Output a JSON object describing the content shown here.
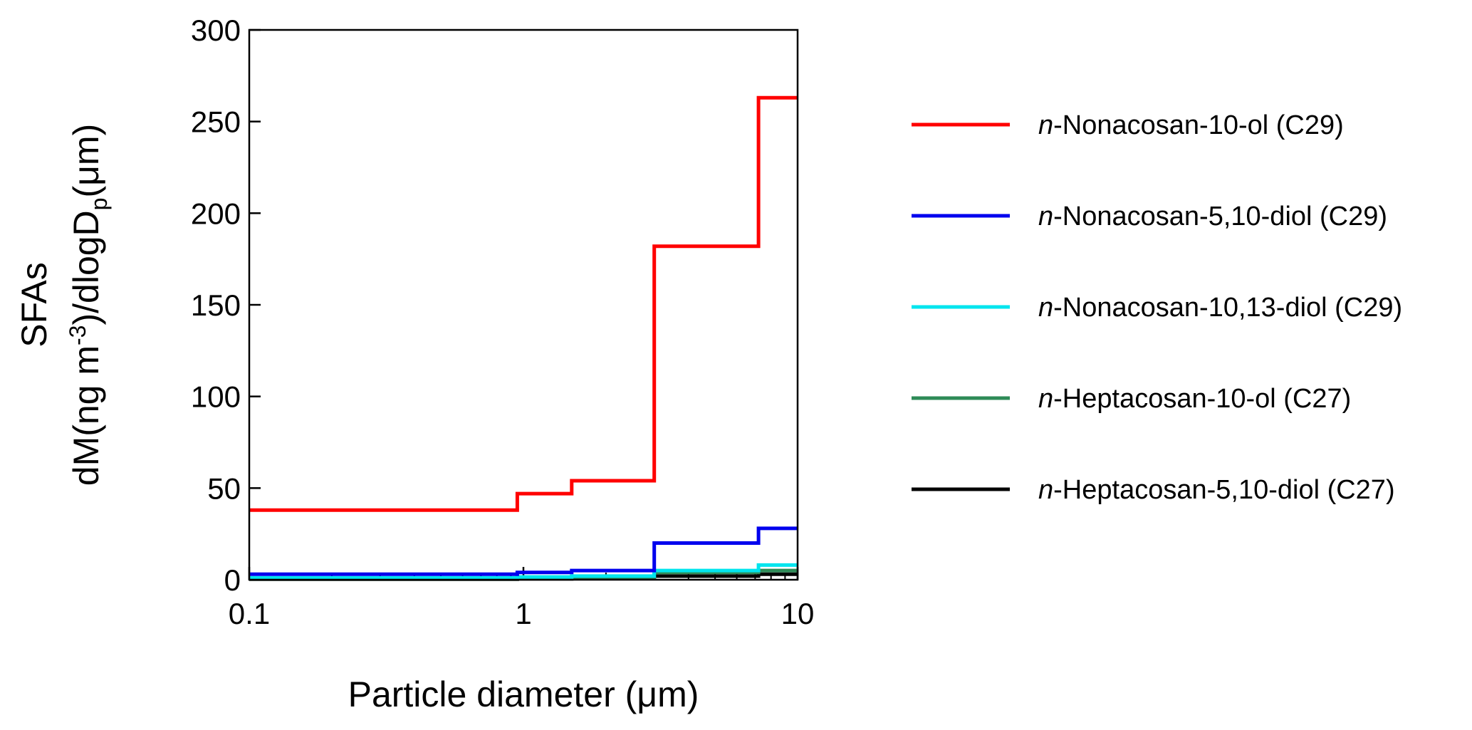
{
  "chart_data": {
    "type": "line",
    "step": true,
    "xscale": "log",
    "xlim": [
      0.1,
      10
    ],
    "ylim": [
      0,
      300
    ],
    "x_ticks": [
      0.1,
      1,
      10
    ],
    "x_tick_labels": [
      "0.1",
      "1",
      "10"
    ],
    "y_ticks": [
      0,
      50,
      100,
      150,
      200,
      250,
      300
    ],
    "y_tick_labels": [
      "0",
      "50",
      "100",
      "150",
      "200",
      "250",
      "300"
    ],
    "xlabel": "Particle diameter (μm)",
    "ylabel_line1": "SFAs",
    "ylabel_line2": "dM(ng m",
    "ylabel_sup": "-3",
    "ylabel_mid": ")/dlogD",
    "ylabel_sub": "p",
    "ylabel_end": "(μm)",
    "grid": false,
    "legend_position": "right",
    "bin_edges": [
      0.1,
      0.95,
      1.5,
      3.0,
      7.2,
      10
    ],
    "series": [
      {
        "name_italic": "n",
        "name_rest": "-Nonacosan-10-ol (C29)",
        "color": "#ff0000",
        "values": [
          38,
          47,
          54,
          182,
          263
        ]
      },
      {
        "name_italic": "n",
        "name_rest": "-Nonacosan-5,10-diol (C29)",
        "color": "#0000ee",
        "values": [
          3,
          4,
          5,
          20,
          28
        ]
      },
      {
        "name_italic": "n",
        "name_rest": "-Nonacosan-10,13-diol (C29)",
        "color": "#00e5ee",
        "values": [
          1,
          1.5,
          2,
          5,
          8
        ]
      },
      {
        "name_italic": "n",
        "name_rest": "-Heptacosan-10-ol (C27)",
        "color": "#2e8b57",
        "values": [
          0.5,
          1,
          1.5,
          4,
          5
        ]
      },
      {
        "name_italic": "n",
        "name_rest": "-Heptacosan-5,10-diol (C27)",
        "color": "#000000",
        "values": [
          0.3,
          0.5,
          1,
          2,
          3
        ]
      }
    ]
  }
}
